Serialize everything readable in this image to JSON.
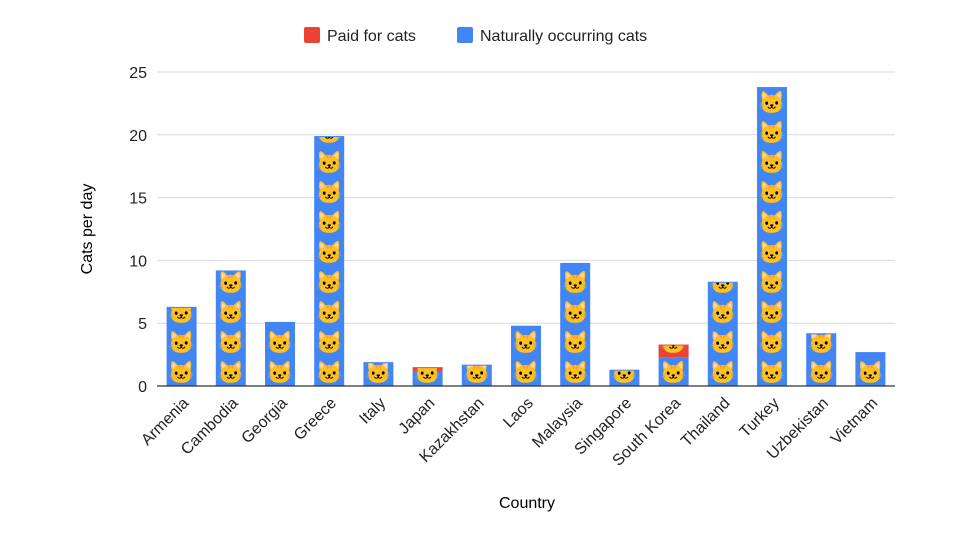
{
  "chart_data": {
    "type": "bar",
    "stacked": true,
    "xlabel": "Country",
    "ylabel": "Cats per day",
    "ylim": [
      0,
      25
    ],
    "yticks": [
      0,
      5,
      10,
      15,
      20,
      25
    ],
    "grid": true,
    "legend_position": "top",
    "categories": [
      "Armenia",
      "Cambodia",
      "Georgia",
      "Greece",
      "Italy",
      "Japan",
      "Kazakhstan",
      "Laos",
      "Malaysia",
      "Singapore",
      "South Korea",
      "Thailand",
      "Turkey",
      "Uzbekistan",
      "Vietnam"
    ],
    "series": [
      {
        "name": "Paid for cats",
        "color": "#ea4335",
        "values": [
          0,
          0,
          0,
          0,
          0,
          0.3,
          0,
          0,
          0,
          0,
          1.0,
          0,
          0,
          0,
          0
        ]
      },
      {
        "name": "Naturally occurring cats",
        "color": "#4285f4",
        "values": [
          6.3,
          9.2,
          5.1,
          19.9,
          1.9,
          1.2,
          1.7,
          4.8,
          9.8,
          1.3,
          2.3,
          8.3,
          23.8,
          4.2,
          2.7
        ]
      }
    ],
    "bar_fill_icon": "cat-face-emoji",
    "bar_fill_glyph": "🐱"
  }
}
